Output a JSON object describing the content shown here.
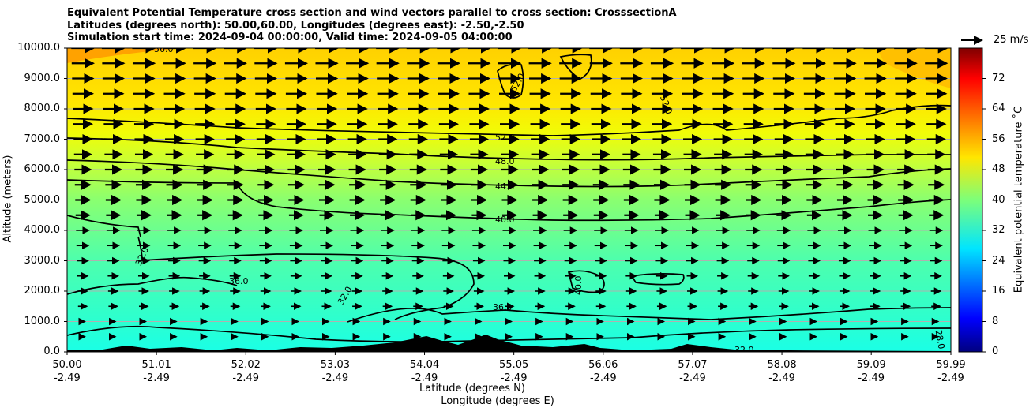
{
  "chart_data": {
    "type": "heatmap",
    "title_lines": [
      "Equivalent Potential Temperature cross section and wind vectors parallel to cross section: CrosssectionA",
      "Latitudes (degrees north): 50.00,60.00, Longitudes (degrees east): -2.50,-2.50",
      "Simulation start time: 2024-09-04 00:00:00, Valid time: 2024-09-05 04:00:00"
    ],
    "ylabel": "Altitude (meters)",
    "xlabel_lat": "Latitude (degrees N)",
    "xlabel_lon": "Longitude (degrees E)",
    "ylim": [
      0,
      10000
    ],
    "yticks": [
      "0.0",
      "1000.0",
      "2000.0",
      "3000.0",
      "4000.0",
      "5000.0",
      "6000.0",
      "7000.0",
      "8000.0",
      "9000.0",
      "10000.0"
    ],
    "xticks_lat": [
      "50.00",
      "51.01",
      "52.02",
      "53.03",
      "54.04",
      "55.05",
      "56.06",
      "57.07",
      "58.08",
      "59.09",
      "59.99"
    ],
    "xticks_lon": [
      "-2.49",
      "-2.49",
      "-2.49",
      "-2.49",
      "-2.49",
      "-2.49",
      "-2.49",
      "-2.49",
      "-2.49",
      "-2.49",
      "-2.49"
    ],
    "colorbar": {
      "label": "Equivalent potential temperature ˚C",
      "range": [
        0,
        80
      ],
      "ticks": [
        "0",
        "8",
        "16",
        "24",
        "32",
        "40",
        "48",
        "56",
        "64",
        "72"
      ],
      "colormap": "jet"
    },
    "wind_key": "25 m/s",
    "contour_levels": [
      {
        "value": 28,
        "label": "28.0"
      },
      {
        "value": 32,
        "label": "32.0"
      },
      {
        "value": 36,
        "label": "36.0"
      },
      {
        "value": 40,
        "label": "40.0"
      },
      {
        "value": 44,
        "label": "44.0"
      },
      {
        "value": 48,
        "label": "48.0"
      },
      {
        "value": 52,
        "label": "52.0"
      },
      {
        "value": 56,
        "label": "56.0"
      }
    ],
    "theta_e_profile": [
      {
        "altitude": 0,
        "value": 31
      },
      {
        "altitude": 1000,
        "value": 34
      },
      {
        "altitude": 2000,
        "value": 36
      },
      {
        "altitude": 3000,
        "value": 38
      },
      {
        "altitude": 4000,
        "value": 40
      },
      {
        "altitude": 5000,
        "value": 43
      },
      {
        "altitude": 6000,
        "value": 47
      },
      {
        "altitude": 7000,
        "value": 51
      },
      {
        "altitude": 8000,
        "value": 53
      },
      {
        "altitude": 9000,
        "value": 54
      },
      {
        "altitude": 10000,
        "value": 56
      }
    ]
  }
}
